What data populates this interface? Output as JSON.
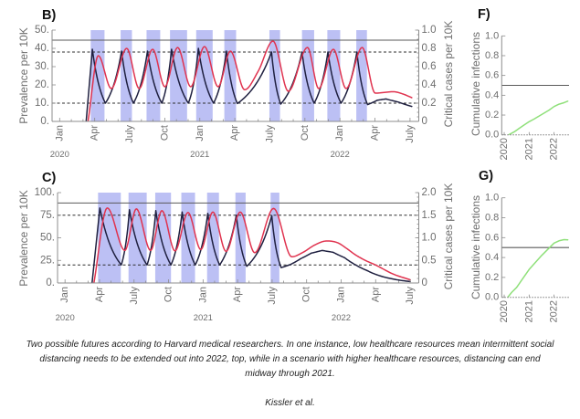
{
  "caption": {
    "lines": [
      "Two possible futures according to Harvard medical researchers. In one instance, low healthcare resources mean intermittent social",
      "distancing needs to be extended out into 2022, top, while in a scenario with higher healthcare resources, distancing can end",
      "midway through 2021."
    ],
    "credit": "Kissler et al."
  },
  "chart_data": [
    {
      "panel_label": "B)",
      "type": "line",
      "title": "",
      "xlabel": "",
      "ylabel": "Prevalence per 10K",
      "y2label": "Critical cases per 10K",
      "x_unit": "months since Jan 2020",
      "xlim": [
        -0.65,
        30.75
      ],
      "ylim": [
        0,
        50
      ],
      "y2lim": [
        0,
        1.0
      ],
      "grid": false,
      "legend": "none",
      "xticks": [
        {
          "v": 0,
          "label": "Jan"
        },
        {
          "v": 3,
          "label": "Apr"
        },
        {
          "v": 6,
          "label": "July"
        },
        {
          "v": 9,
          "label": "Oct"
        },
        {
          "v": 12,
          "label": "Jan"
        },
        {
          "v": 15,
          "label": "Apr"
        },
        {
          "v": 18,
          "label": "July"
        },
        {
          "v": 21,
          "label": "Oct"
        },
        {
          "v": 24,
          "label": "Jan"
        },
        {
          "v": 27,
          "label": "Apr"
        },
        {
          "v": 30,
          "label": "July"
        }
      ],
      "year_labels": [
        {
          "v": 0,
          "label": "2020"
        },
        {
          "v": 12,
          "label": "2021"
        },
        {
          "v": 24,
          "label": "2022"
        }
      ],
      "yticks": [
        {
          "v": 0,
          "label": "0."
        },
        {
          "v": 10,
          "label": "10."
        },
        {
          "v": 20,
          "label": "20."
        },
        {
          "v": 30,
          "label": "30."
        },
        {
          "v": 40,
          "label": "40."
        },
        {
          "v": 50,
          "label": "50."
        }
      ],
      "y2ticks": [
        {
          "v": 0,
          "label": "0"
        },
        {
          "v": 0.2,
          "label": "0.2"
        },
        {
          "v": 0.4,
          "label": "0.4"
        },
        {
          "v": 0.6,
          "label": "0.6"
        },
        {
          "v": 0.8,
          "label": "0.8"
        },
        {
          "v": 1.0,
          "label": "1.0"
        }
      ],
      "band_color": "#bcc0f4",
      "shaded_intervals": [
        [
          2.66,
          3.84
        ],
        [
          5.22,
          6.19
        ],
        [
          7.44,
          8.61
        ],
        [
          9.45,
          10.91
        ],
        [
          11.69,
          13.1
        ],
        [
          14.1,
          15.11
        ],
        [
          17.96,
          18.87
        ],
        [
          20.75,
          21.79
        ],
        [
          22.92,
          24.02
        ],
        [
          25.4,
          26.31
        ]
      ],
      "hlines": [
        {
          "axis": "right",
          "value": 0.89,
          "style": "solid"
        },
        {
          "axis": "left",
          "value": 38,
          "style": "dashed"
        },
        {
          "axis": "left",
          "value": 10,
          "style": "dashed"
        }
      ],
      "series": [
        {
          "name": "Prevalence per 10K",
          "axis": "left",
          "color": "#1f2040",
          "interp": "exp",
          "points": [
            [
              2.27,
              0
            ],
            [
              2.8,
              39.5
            ],
            [
              3.92,
              10
            ],
            [
              5.3,
              38.5
            ],
            [
              6.32,
              10
            ],
            [
              7.52,
              38.5
            ],
            [
              8.75,
              10
            ],
            [
              9.58,
              39.5
            ],
            [
              11.02,
              10
            ],
            [
              11.88,
              40
            ],
            [
              13.18,
              10
            ],
            [
              14.28,
              38.5
            ],
            [
              15.22,
              9.8
            ],
            [
              18.14,
              38
            ],
            [
              18.93,
              9.5
            ],
            [
              20.75,
              38
            ],
            [
              21.79,
              10
            ],
            [
              22.97,
              38
            ],
            [
              24.1,
              10
            ],
            [
              25.45,
              38
            ],
            [
              26.37,
              9.2
            ],
            [
              27.2,
              11.6
            ],
            [
              27.93,
              12.3
            ],
            [
              29.0,
              10.6
            ],
            [
              30.15,
              8.2
            ]
          ]
        },
        {
          "name": "Critical cases per 10K",
          "axis": "right",
          "color": "#e0334f",
          "interp": "smooth",
          "points": [
            [
              2.43,
              0
            ],
            [
              3.31,
              0.72
            ],
            [
              4.42,
              0.36
            ],
            [
              5.74,
              0.8
            ],
            [
              6.81,
              0.36
            ],
            [
              7.96,
              0.79
            ],
            [
              9.01,
              0.38
            ],
            [
              10.1,
              0.81
            ],
            [
              11.22,
              0.38
            ],
            [
              12.4,
              0.82
            ],
            [
              13.57,
              0.38
            ],
            [
              14.62,
              0.77
            ],
            [
              15.84,
              0.347
            ],
            [
              17.0,
              0.55
            ],
            [
              18.27,
              0.88
            ],
            [
              19.58,
              0.33
            ],
            [
              21.22,
              0.81
            ],
            [
              22.18,
              0.36
            ],
            [
              23.44,
              0.79
            ],
            [
              24.53,
              0.36
            ],
            [
              25.9,
              0.81
            ],
            [
              27.02,
              0.31
            ],
            [
              28.58,
              0.325
            ],
            [
              29.4,
              0.3
            ],
            [
              30.15,
              0.26
            ]
          ]
        }
      ]
    },
    {
      "panel_label": "C)",
      "type": "line",
      "title": "",
      "xlabel": "",
      "ylabel": "Prevalence per 10K",
      "y2label": "Critical cases per 10K",
      "x_unit": "months since Jan 2020",
      "xlim": [
        -0.65,
        30.75
      ],
      "ylim": [
        0,
        100
      ],
      "y2lim": [
        0,
        2.0
      ],
      "grid": false,
      "legend": "none",
      "xticks": [
        {
          "v": 0,
          "label": "Jan"
        },
        {
          "v": 3,
          "label": "Apr"
        },
        {
          "v": 6,
          "label": "July"
        },
        {
          "v": 9,
          "label": "Oct"
        },
        {
          "v": 12,
          "label": "Jan"
        },
        {
          "v": 15,
          "label": "Apr"
        },
        {
          "v": 18,
          "label": "July"
        },
        {
          "v": 21,
          "label": "Oct"
        },
        {
          "v": 24,
          "label": "Jan"
        },
        {
          "v": 27,
          "label": "Apr"
        },
        {
          "v": 30,
          "label": "July"
        }
      ],
      "year_labels": [
        {
          "v": 0,
          "label": "2020"
        },
        {
          "v": 12,
          "label": "2021"
        },
        {
          "v": 24,
          "label": "2022"
        }
      ],
      "yticks": [
        {
          "v": 0,
          "label": "0."
        },
        {
          "v": 25,
          "label": "25."
        },
        {
          "v": 50,
          "label": "50."
        },
        {
          "v": 75,
          "label": "75."
        },
        {
          "v": 100,
          "label": "100."
        }
      ],
      "y2ticks": [
        {
          "v": 0,
          "label": "0"
        },
        {
          "v": 0.5,
          "label": "0.5"
        },
        {
          "v": 1.0,
          "label": "1.0"
        },
        {
          "v": 1.5,
          "label": "1.5"
        },
        {
          "v": 2.0,
          "label": "2.0"
        }
      ],
      "band_color": "#bcc0f4",
      "shaded_intervals": [
        [
          2.87,
          4.85
        ],
        [
          5.52,
          7.1
        ],
        [
          7.84,
          9.21
        ],
        [
          10.11,
          11.3
        ],
        [
          12.35,
          13.38
        ],
        [
          14.81,
          15.7
        ],
        [
          17.87,
          18.63
        ]
      ],
      "hlines": [
        {
          "axis": "right",
          "value": 1.77,
          "style": "solid"
        },
        {
          "axis": "left",
          "value": 75,
          "style": "dashed"
        },
        {
          "axis": "left",
          "value": 20,
          "style": "dashed"
        }
      ],
      "series": [
        {
          "name": "Prevalence per 10K",
          "axis": "left",
          "color": "#1f2040",
          "interp": "exp",
          "points": [
            [
              2.35,
              0
            ],
            [
              3.03,
              83
            ],
            [
              4.89,
              20
            ],
            [
              5.6,
              81
            ],
            [
              7.13,
              20
            ],
            [
              7.89,
              80
            ],
            [
              9.21,
              20
            ],
            [
              10.18,
              78.5
            ],
            [
              11.32,
              20
            ],
            [
              12.41,
              77
            ],
            [
              13.44,
              20
            ],
            [
              14.89,
              75
            ],
            [
              15.8,
              18.5
            ],
            [
              17.97,
              74.5
            ],
            [
              18.79,
              17
            ],
            [
              19.6,
              20.5
            ],
            [
              20.5,
              27
            ],
            [
              21.4,
              33
            ],
            [
              22.35,
              36
            ],
            [
              23.3,
              34
            ],
            [
              24.3,
              28
            ],
            [
              25.26,
              20
            ],
            [
              26.3,
              13.5
            ],
            [
              27.24,
              8.5
            ],
            [
              28.6,
              4.2
            ],
            [
              30.01,
              1.7
            ]
          ]
        },
        {
          "name": "Critical cases per 10K",
          "axis": "right",
          "color": "#e0334f",
          "interp": "smooth",
          "points": [
            [
              2.51,
              0
            ],
            [
              3.67,
              1.66
            ],
            [
              5.2,
              0.72
            ],
            [
              6.2,
              1.64
            ],
            [
              7.44,
              0.72
            ],
            [
              8.42,
              1.6
            ],
            [
              9.56,
              0.71
            ],
            [
              10.69,
              1.56
            ],
            [
              11.8,
              0.74
            ],
            [
              12.85,
              1.57
            ],
            [
              14.0,
              0.7
            ],
            [
              15.23,
              1.57
            ],
            [
              16.49,
              0.67
            ],
            [
              18.13,
              1.65
            ],
            [
              19.71,
              0.58
            ],
            [
              20.7,
              0.68
            ],
            [
              21.7,
              0.84
            ],
            [
              22.75,
              0.93
            ],
            [
              23.7,
              0.89
            ],
            [
              24.5,
              0.76
            ],
            [
              25.26,
              0.62
            ],
            [
              26.1,
              0.5
            ],
            [
              26.98,
              0.4
            ],
            [
              28.5,
              0.2
            ],
            [
              30.01,
              0.07
            ]
          ]
        }
      ]
    },
    {
      "panel_label": "F)",
      "type": "line",
      "title": "",
      "xlabel": "",
      "ylabel": "Cumulative infections",
      "x_unit": "year",
      "xlim": [
        2019.9,
        2022.6
      ],
      "ylim": [
        0,
        1.0
      ],
      "grid": false,
      "legend": "none",
      "xticks": [
        {
          "v": 2020,
          "label": "2020"
        },
        {
          "v": 2021,
          "label": "2021"
        },
        {
          "v": 2022,
          "label": "2022"
        }
      ],
      "yticks": [
        {
          "v": 0,
          "label": "0.0"
        },
        {
          "v": 0.2,
          "label": "0.2"
        },
        {
          "v": 0.4,
          "label": "0.4"
        },
        {
          "v": 0.6,
          "label": "0.6"
        },
        {
          "v": 0.8,
          "label": "0.8"
        },
        {
          "v": 1.0,
          "label": "1.0"
        }
      ],
      "hlines": [
        {
          "axis": "left",
          "value": 0.5,
          "style": "solid"
        }
      ],
      "series": [
        {
          "name": "Cumulative infections",
          "axis": "left",
          "color": "#8fe07a",
          "interp": "linear",
          "points": [
            [
              2020.18,
              0.0
            ],
            [
              2020.4,
              0.03
            ],
            [
              2020.6,
              0.065
            ],
            [
              2020.8,
              0.1
            ],
            [
              2021.0,
              0.133
            ],
            [
              2021.2,
              0.16
            ],
            [
              2021.4,
              0.19
            ],
            [
              2021.6,
              0.22
            ],
            [
              2021.8,
              0.25
            ],
            [
              2022.0,
              0.286
            ],
            [
              2022.2,
              0.31
            ],
            [
              2022.4,
              0.325
            ],
            [
              2022.55,
              0.34
            ]
          ]
        }
      ]
    },
    {
      "panel_label": "G)",
      "type": "line",
      "title": "",
      "xlabel": "",
      "ylabel": "Cumulative infections",
      "x_unit": "year",
      "xlim": [
        2019.9,
        2022.6
      ],
      "ylim": [
        0,
        1.0
      ],
      "grid": false,
      "legend": "none",
      "xticks": [
        {
          "v": 2020,
          "label": "2020"
        },
        {
          "v": 2021,
          "label": "2021"
        },
        {
          "v": 2022,
          "label": "2022"
        }
      ],
      "yticks": [
        {
          "v": 0,
          "label": "0.0"
        },
        {
          "v": 0.2,
          "label": "0.2"
        },
        {
          "v": 0.4,
          "label": "0.4"
        },
        {
          "v": 0.6,
          "label": "0.6"
        },
        {
          "v": 0.8,
          "label": "0.8"
        },
        {
          "v": 1.0,
          "label": "1.0"
        }
      ],
      "hlines": [
        {
          "axis": "left",
          "value": 0.5,
          "style": "solid"
        }
      ],
      "series": [
        {
          "name": "Cumulative infections",
          "axis": "left",
          "color": "#8fe07a",
          "interp": "linear",
          "points": [
            [
              2020.14,
              0.0
            ],
            [
              2020.3,
              0.05
            ],
            [
              2020.5,
              0.1
            ],
            [
              2020.75,
              0.19
            ],
            [
              2021.0,
              0.28
            ],
            [
              2021.25,
              0.35
            ],
            [
              2021.5,
              0.42
            ],
            [
              2021.82,
              0.5
            ],
            [
              2022.0,
              0.545
            ],
            [
              2022.2,
              0.568
            ],
            [
              2022.4,
              0.58
            ],
            [
              2022.55,
              0.578
            ]
          ]
        }
      ]
    }
  ]
}
